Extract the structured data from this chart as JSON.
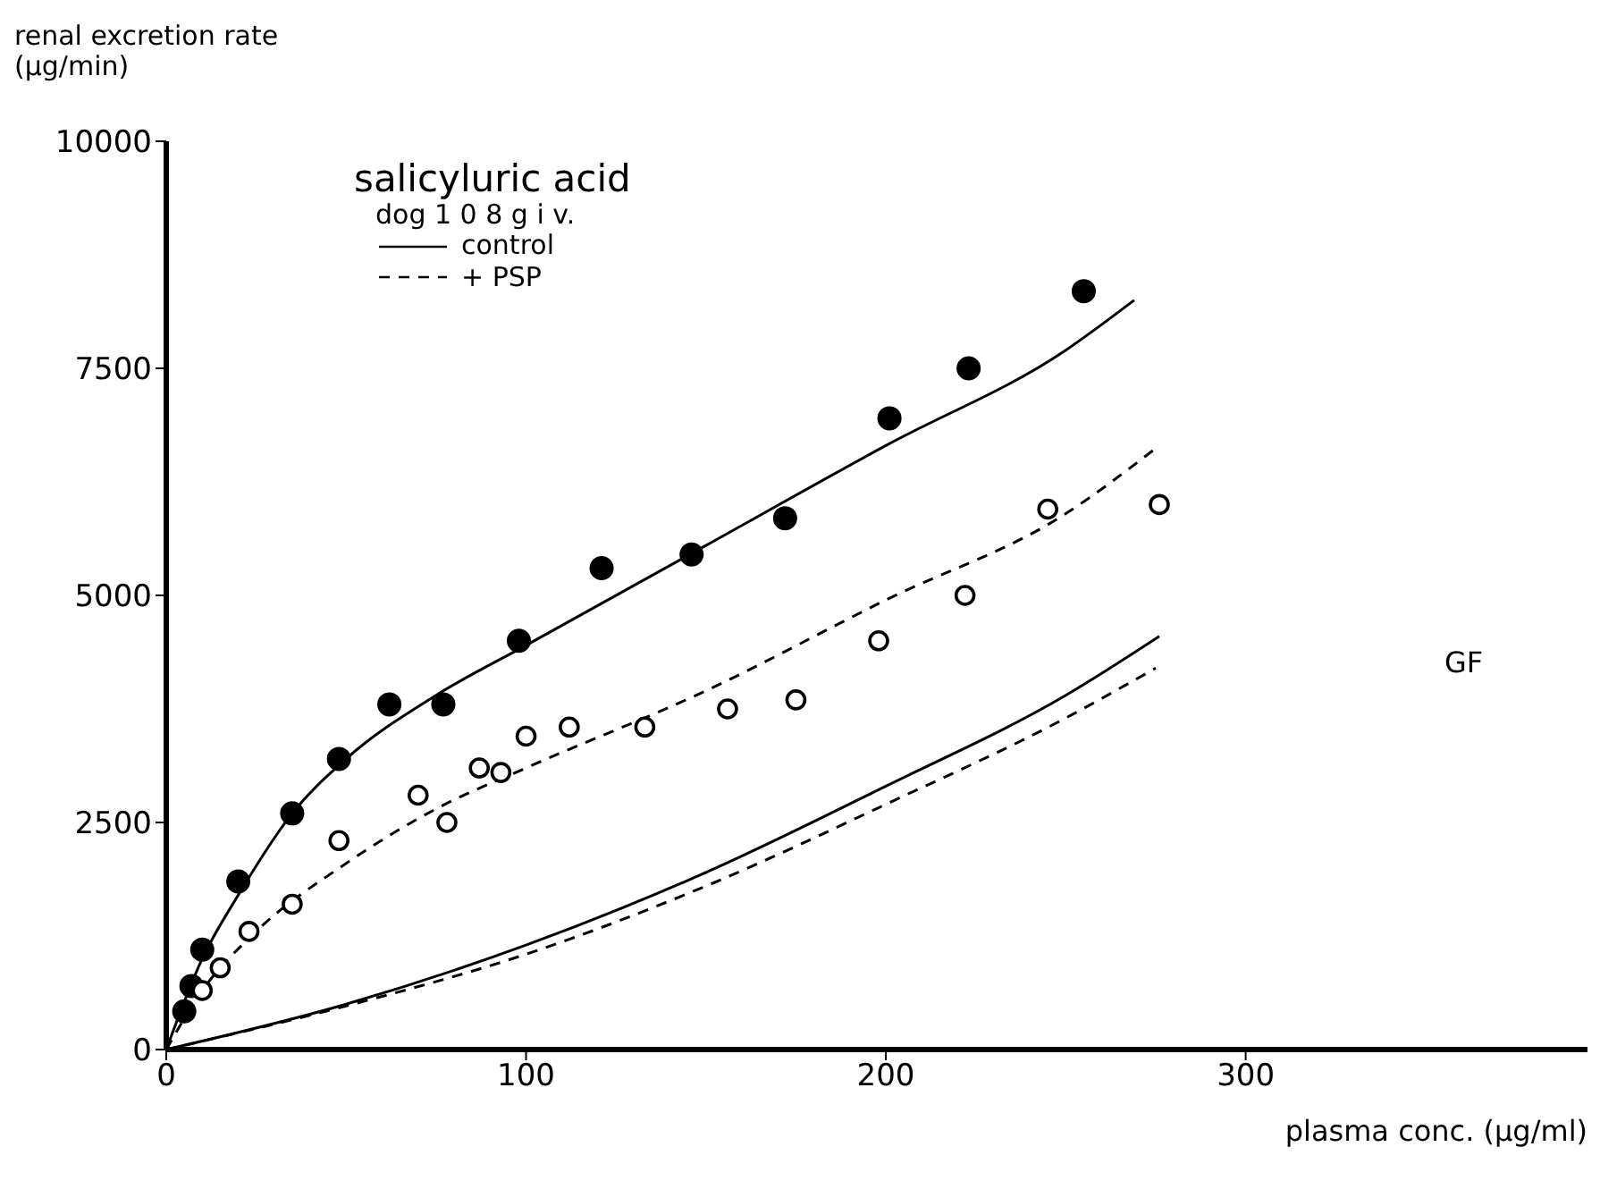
{
  "chart_data": {
    "type": "scatter",
    "xlabel": "plasma conc. (µg/ml)",
    "ylabel": "renal excretion rate\n(µg/min)",
    "legend_title": "salicyluric acid",
    "legend": "top left",
    "grid": false,
    "xlim": [
      0,
      395
    ],
    "xticks": [
      0,
      100,
      200,
      300
    ],
    "ylim": [
      0,
      10000
    ],
    "yticks": [
      0,
      2500,
      5000,
      7500,
      10000
    ],
    "annotations": [
      "dog 1 0 8 g i v.",
      "GF"
    ],
    "series": [
      {
        "marker": "circle",
        "color": "#000000",
        "x": [
          5,
          7,
          10,
          20,
          35,
          48,
          62,
          77,
          98,
          121,
          146,
          172,
          201,
          223,
          255
        ],
        "values": [
          420,
          700,
          1100,
          1850,
          2600,
          3200,
          3800,
          3800,
          4500,
          5300,
          5450,
          5850,
          6950,
          7500,
          8350
        ]
      },
      {
        "marker": "open circle",
        "color": "#000000",
        "x": [
          10,
          15,
          23,
          35,
          48,
          70,
          78,
          87,
          93,
          100,
          112,
          133,
          156,
          175,
          198,
          222,
          245,
          276
        ],
        "values": [
          650,
          900,
          1300,
          1600,
          2300,
          2800,
          2500,
          3100,
          3050,
          3450,
          3550,
          3550,
          3750,
          3850,
          4500,
          5000,
          5950,
          6000
        ]
      },
      {
        "type": "line",
        "name": "control",
        "line_style": "solid",
        "marker": "none",
        "color": "#000000",
        "x": [
          0,
          10,
          20,
          35,
          50,
          75,
          100,
          150,
          200,
          250,
          269
        ],
        "values": [
          0,
          1000,
          1700,
          2600,
          3200,
          3900,
          4450,
          5550,
          6650,
          7700,
          8250
        ]
      },
      {
        "type": "line",
        "name": "+ PSP",
        "line_style": "dashed",
        "marker": "none",
        "color": "#000000",
        "x": [
          0,
          10,
          25,
          50,
          75,
          100,
          150,
          200,
          250,
          276
        ],
        "values": [
          0,
          650,
          1300,
          2050,
          2650,
          3100,
          3950,
          4950,
          5900,
          6650
        ]
      },
      {
        "type": "line",
        "line_style": "solid",
        "marker": "none",
        "color": "#000000",
        "x": [
          0,
          50,
          100,
          150,
          200,
          250,
          276
        ],
        "values": [
          0,
          500,
          1150,
          1950,
          2900,
          3900,
          4550
        ]
      },
      {
        "type": "line",
        "line_style": "dashed",
        "marker": "none",
        "color": "#000000",
        "x": [
          0,
          50,
          100,
          150,
          200,
          250,
          275
        ],
        "values": [
          0,
          480,
          1050,
          1800,
          2700,
          3650,
          4200
        ]
      }
    ]
  }
}
